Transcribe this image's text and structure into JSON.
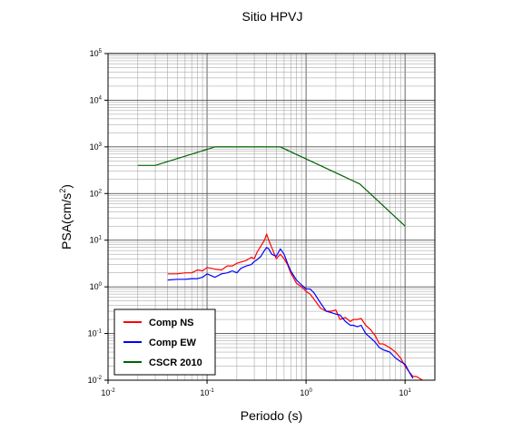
{
  "chart_data": {
    "type": "line",
    "title": "Sitio HPVJ",
    "xlabel": "Periodo (s)",
    "ylabel_main": "PSA(cm/s",
    "ylabel_sup": "2",
    "ylabel_close": ")",
    "x_scale": "log",
    "y_scale": "log",
    "xlim": [
      0.01,
      20
    ],
    "ylim": [
      0.01,
      100000
    ],
    "grid": true,
    "legend_position": "bottom-left",
    "x_ticks": [
      {
        "base": "10",
        "exp": "-2"
      },
      {
        "base": "10",
        "exp": "-1"
      },
      {
        "base": "10",
        "exp": "0"
      },
      {
        "base": "10",
        "exp": "1"
      }
    ],
    "y_ticks": [
      {
        "base": "10",
        "exp": "-2"
      },
      {
        "base": "10",
        "exp": "-1"
      },
      {
        "base": "10",
        "exp": "0"
      },
      {
        "base": "10",
        "exp": "1"
      },
      {
        "base": "10",
        "exp": "2"
      },
      {
        "base": "10",
        "exp": "3"
      },
      {
        "base": "10",
        "exp": "4"
      },
      {
        "base": "10",
        "exp": "5"
      }
    ],
    "series": [
      {
        "name": "Comp NS",
        "color": "#ff0000",
        "x": [
          0.04,
          0.05,
          0.06,
          0.07,
          0.08,
          0.09,
          0.1,
          0.12,
          0.14,
          0.16,
          0.18,
          0.2,
          0.22,
          0.25,
          0.28,
          0.3,
          0.32,
          0.35,
          0.38,
          0.4,
          0.42,
          0.45,
          0.5,
          0.55,
          0.6,
          0.65,
          0.7,
          0.8,
          0.9,
          1.0,
          1.1,
          1.2,
          1.4,
          1.6,
          1.8,
          2.0,
          2.2,
          2.5,
          2.8,
          3.0,
          3.3,
          3.6,
          4.0,
          4.5,
          5.0,
          5.5,
          6.0,
          7.0,
          8.0,
          9.0,
          10.0,
          11.0,
          12.0,
          13.0,
          15.0
        ],
        "values": [
          1.9,
          1.9,
          2.0,
          2.0,
          2.3,
          2.2,
          2.6,
          2.4,
          2.3,
          2.8,
          2.8,
          3.2,
          3.4,
          3.7,
          4.3,
          4.0,
          5.5,
          7.5,
          10.0,
          13.5,
          10.0,
          7.0,
          4.0,
          5.0,
          4.0,
          3.0,
          2.0,
          1.2,
          1.0,
          0.8,
          0.7,
          0.55,
          0.35,
          0.3,
          0.3,
          0.32,
          0.2,
          0.22,
          0.18,
          0.2,
          0.2,
          0.21,
          0.15,
          0.12,
          0.09,
          0.06,
          0.06,
          0.05,
          0.04,
          0.03,
          0.02,
          0.015,
          0.012,
          0.012,
          0.009
        ]
      },
      {
        "name": "Comp EW",
        "color": "#0000ff",
        "x": [
          0.04,
          0.05,
          0.06,
          0.07,
          0.08,
          0.09,
          0.1,
          0.12,
          0.14,
          0.16,
          0.18,
          0.2,
          0.22,
          0.25,
          0.28,
          0.3,
          0.32,
          0.35,
          0.38,
          0.4,
          0.42,
          0.45,
          0.5,
          0.55,
          0.6,
          0.65,
          0.7,
          0.8,
          0.9,
          1.0,
          1.1,
          1.2,
          1.4,
          1.6,
          1.8,
          2.0,
          2.2,
          2.5,
          2.8,
          3.0,
          3.3,
          3.6,
          4.0,
          4.5,
          5.0,
          5.5,
          6.0,
          7.0,
          8.0,
          9.0,
          10.0,
          11.0,
          12.0
        ],
        "values": [
          1.4,
          1.45,
          1.45,
          1.5,
          1.5,
          1.6,
          1.9,
          1.6,
          1.9,
          2.0,
          2.2,
          2.0,
          2.5,
          2.8,
          3.0,
          3.5,
          3.8,
          4.5,
          6.0,
          7.0,
          6.5,
          5.0,
          4.5,
          6.5,
          5.0,
          3.2,
          2.2,
          1.4,
          1.1,
          0.9,
          0.9,
          0.75,
          0.45,
          0.3,
          0.28,
          0.26,
          0.25,
          0.18,
          0.15,
          0.15,
          0.14,
          0.15,
          0.1,
          0.08,
          0.065,
          0.05,
          0.045,
          0.04,
          0.03,
          0.025,
          0.022,
          0.015,
          0.011
        ]
      },
      {
        "name": "CSCR 2010",
        "color": "#006400",
        "x": [
          0.02,
          0.03,
          0.12,
          0.55,
          3.5,
          10.0
        ],
        "values": [
          400,
          400,
          1000,
          1000,
          160,
          20
        ]
      }
    ]
  }
}
